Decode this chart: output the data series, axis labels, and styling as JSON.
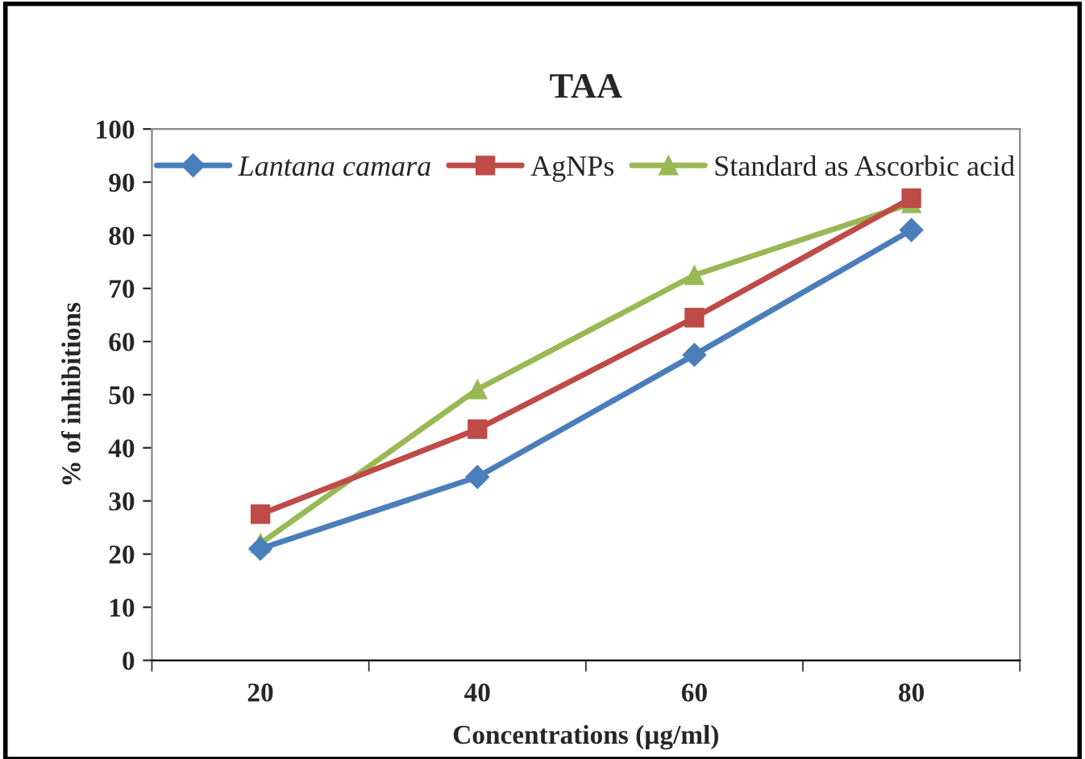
{
  "chart_data": {
    "type": "line",
    "title": "TAA",
    "xlabel": "Concentrations (µg/ml)",
    "ylabel": "% of inhibitions",
    "categories": [
      "20",
      "40",
      "60",
      "80"
    ],
    "series": [
      {
        "name": "Lantana camara",
        "color": "#4a7ebb",
        "marker": "diamond",
        "values": [
          21,
          34.5,
          57.5,
          81
        ]
      },
      {
        "name": "AgNPs",
        "color": "#be4b48",
        "marker": "square",
        "values": [
          27.5,
          43.5,
          64.5,
          87
        ]
      },
      {
        "name": "Standard as Ascorbic acid",
        "color": "#98b954",
        "marker": "triangle",
        "values": [
          22,
          51,
          72.5,
          86
        ]
      }
    ],
    "ylim": [
      0,
      100
    ],
    "yticks": [
      0,
      10,
      20,
      30,
      40,
      50,
      60,
      70,
      80,
      90,
      100
    ],
    "grid": false,
    "legend": "top",
    "line_style": "solid"
  }
}
